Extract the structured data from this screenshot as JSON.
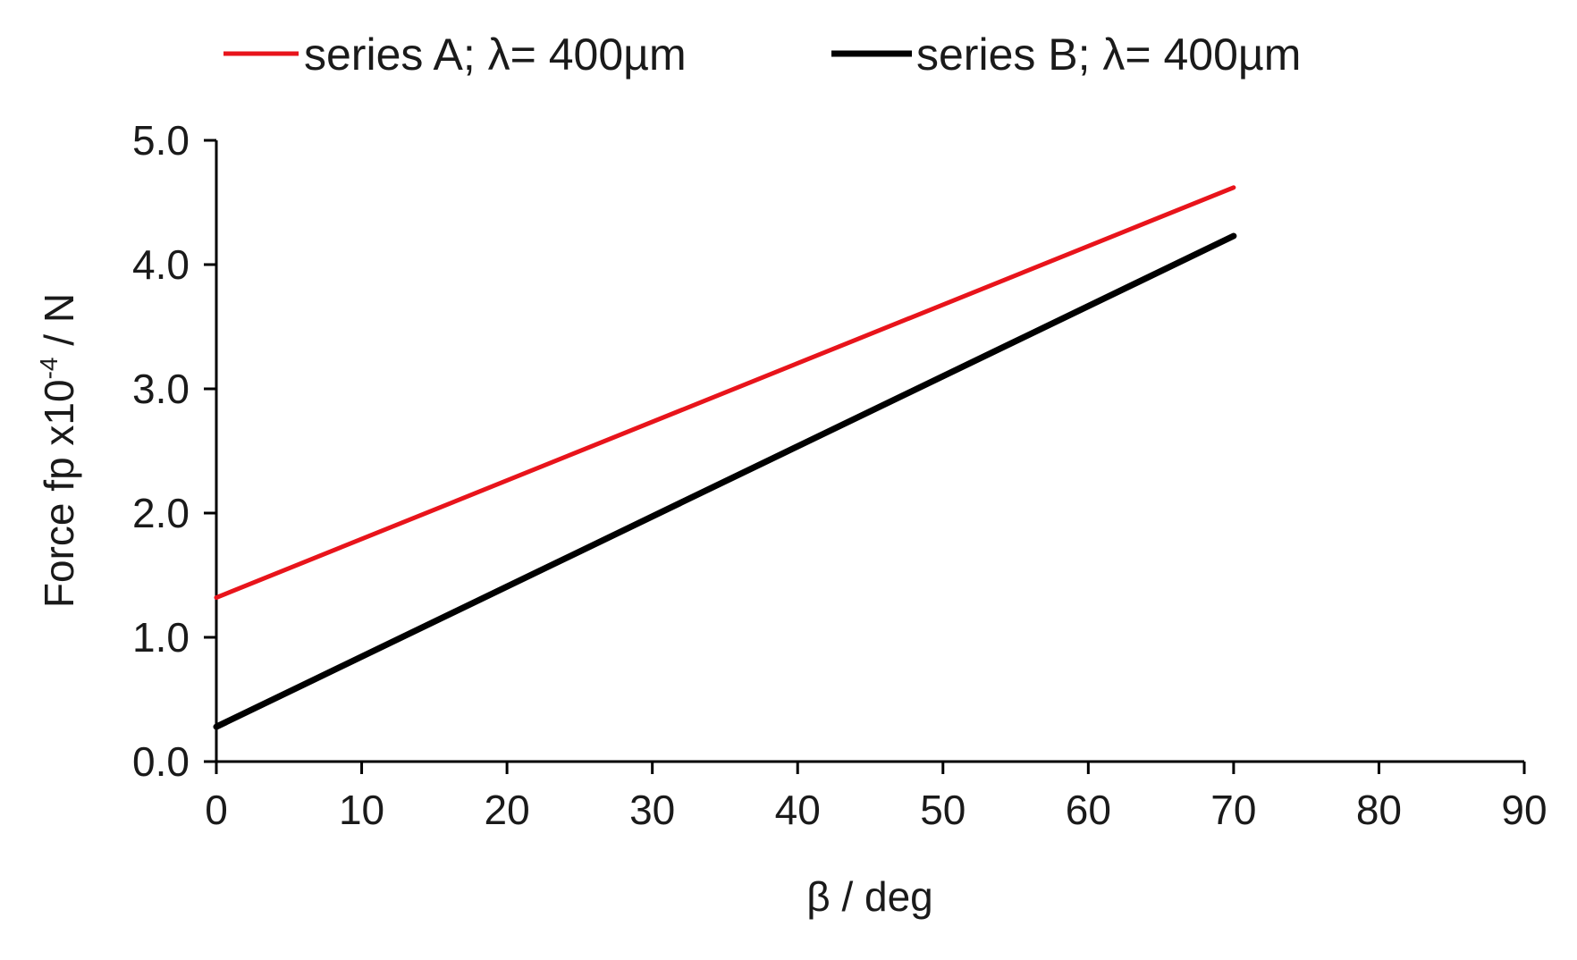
{
  "chart_data": {
    "type": "line",
    "xlabel": "β / deg",
    "ylabel_main": "Force fp x10",
    "ylabel_sup": "-4",
    "ylabel_unit": " / N",
    "xlim": [
      0,
      90
    ],
    "ylim": [
      0,
      5
    ],
    "x_ticks": [
      "0",
      "10",
      "20",
      "30",
      "40",
      "50",
      "60",
      "70",
      "80",
      "90"
    ],
    "y_ticks": [
      "0.0",
      "1.0",
      "2.0",
      "3.0",
      "4.0",
      "5.0"
    ],
    "grid": false,
    "legend_position": "top",
    "series": [
      {
        "name": "series A; λ= 400µm",
        "color": "#e8141b",
        "x": [
          0,
          70
        ],
        "y": [
          1.32,
          4.62
        ]
      },
      {
        "name": "series B; λ= 400µm",
        "color": "#000000",
        "x": [
          0,
          70
        ],
        "y": [
          0.28,
          4.23
        ]
      }
    ]
  }
}
